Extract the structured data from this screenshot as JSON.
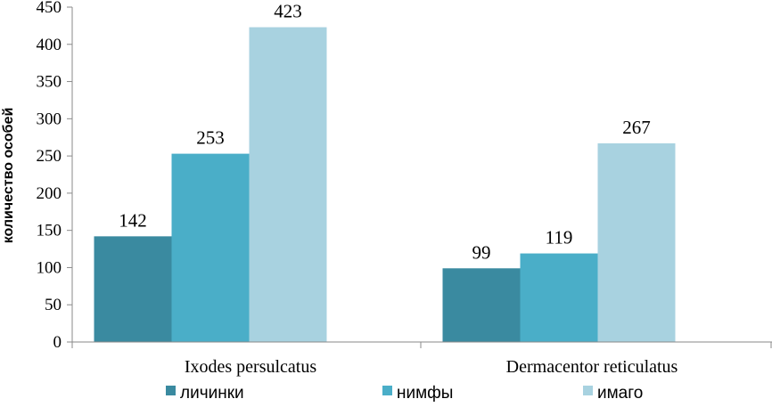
{
  "chart_data": {
    "type": "bar",
    "title": "",
    "xlabel": "",
    "ylabel": "количество особей",
    "ylim": [
      0,
      450
    ],
    "yticks": [
      0,
      50,
      100,
      150,
      200,
      250,
      300,
      350,
      400,
      450
    ],
    "categories": [
      "Ixodes persulcatus",
      "Dermacentor reticulatus"
    ],
    "series": [
      {
        "name": "личинки",
        "values": [
          142,
          99
        ],
        "color": "#3a8aa0"
      },
      {
        "name": "нимфы",
        "values": [
          253,
          119
        ],
        "color": "#4aaec8"
      },
      {
        "name": "имаго",
        "values": [
          423,
          267
        ],
        "color": "#a8d2e0"
      }
    ],
    "data_labels": true,
    "grid": false,
    "legend_position": "bottom"
  }
}
